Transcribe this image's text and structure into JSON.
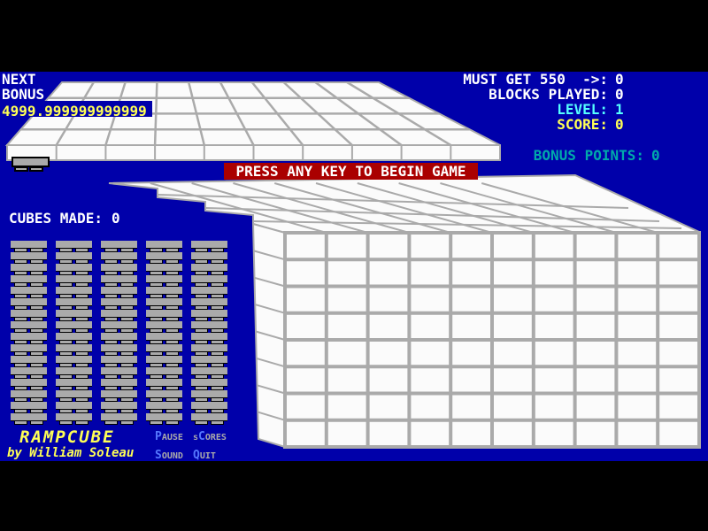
{
  "window": {
    "background_color": "#0000AA",
    "letterbox_color": "#000000"
  },
  "hud_left": {
    "next_label": "NEXT",
    "bonus_label": "BONUS",
    "bonus_value": "4999.999999999999",
    "cubes_made_label": "CUBES MADE:",
    "cubes_made_value": "0"
  },
  "hud_right": {
    "rows": [
      {
        "label": "MUST GET 550  ->:",
        "value": "0",
        "color": "#FFFFFF"
      },
      {
        "label": "BLOCKS PLAYED:",
        "value": "0",
        "color": "#FFFFFF"
      },
      {
        "label": "LEVEL:",
        "value": "1",
        "color": "#55FFFF"
      },
      {
        "label": "SCORE:",
        "value": "0",
        "color": "#FFFF55"
      }
    ],
    "bonus_points": {
      "label": "BONUS POINTS:",
      "value": "0",
      "color": "#00AAAA"
    }
  },
  "banner": {
    "text": "PRESS ANY KEY TO BEGIN GAME",
    "background": "#AA0000",
    "text_color": "#FFFFFF"
  },
  "branding": {
    "title": "RAMPCUBE",
    "byline": "by William Soleau",
    "color": "#FFFF55"
  },
  "menu": {
    "hotkey_color": "#5577FF",
    "text_color": "#AAAAAA",
    "items": [
      {
        "name": "pause",
        "pre": "",
        "hotkey": "P",
        "rest": "AUSE"
      },
      {
        "name": "scores",
        "pre": "s",
        "hotkey": "C",
        "rest": "ORES"
      },
      {
        "name": "sound",
        "pre": "",
        "hotkey": "S",
        "rest": "OUND"
      },
      {
        "name": "quit",
        "pre": "",
        "hotkey": "Q",
        "rest": "UIT"
      }
    ]
  },
  "stacks": {
    "columns": 5,
    "blocks_per_column": 16,
    "block_color": "#AAAAAA"
  },
  "playfield": {
    "front_grid_columns": 10,
    "front_grid_rows": 8,
    "top_platform_columns": 10,
    "top_platform_rows": 4,
    "surface_color": "#FBFBFB",
    "grid_line_color": "#AAAAAA"
  }
}
